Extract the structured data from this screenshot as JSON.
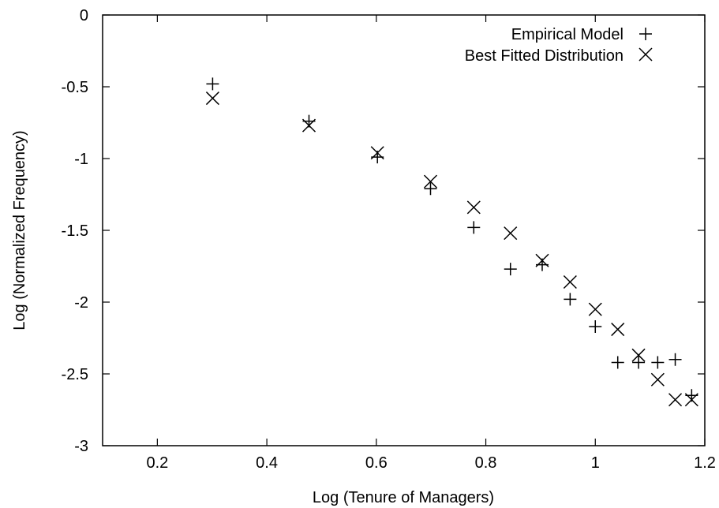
{
  "chart_data": {
    "type": "scatter",
    "xlabel": "Log (Tenure of Managers)",
    "ylabel": "Log (Normalized Frequency)",
    "xlim": [
      0.1,
      1.2
    ],
    "ylim": [
      -3,
      0
    ],
    "xticks": [
      0.2,
      0.4,
      0.6,
      0.8,
      1,
      1.2
    ],
    "xtick_labels": [
      "0.2",
      "0.4",
      "0.6",
      "0.8",
      "1",
      "1.2"
    ],
    "yticks": [
      0,
      -0.5,
      -1,
      -1.5,
      -2,
      -2.5,
      -3
    ],
    "ytick_labels": [
      "0",
      "-0.5",
      "-1",
      "-1.5",
      "-2",
      "-2.5",
      "-3"
    ],
    "grid": false,
    "legend": "top-right",
    "series": [
      {
        "name": "Empirical Model",
        "marker": "plus",
        "x": [
          0.301,
          0.477,
          0.602,
          0.699,
          0.778,
          0.845,
          0.903,
          0.954,
          1.0,
          1.041,
          1.079,
          1.114,
          1.146,
          1.176
        ],
        "y": [
          -0.48,
          -0.74,
          -0.99,
          -1.21,
          -1.48,
          -1.77,
          -1.74,
          -1.98,
          -2.17,
          -2.42,
          -2.42,
          -2.42,
          -2.4,
          -2.65
        ]
      },
      {
        "name": "Best Fitted Distribution",
        "marker": "cross",
        "x": [
          0.301,
          0.477,
          0.602,
          0.699,
          0.778,
          0.845,
          0.903,
          0.954,
          1.0,
          1.041,
          1.079,
          1.114,
          1.146,
          1.176
        ],
        "y": [
          -0.58,
          -0.77,
          -0.96,
          -1.16,
          -1.34,
          -1.52,
          -1.71,
          -1.86,
          -2.05,
          -2.19,
          -2.37,
          -2.54,
          -2.68,
          -2.68
        ]
      }
    ]
  }
}
